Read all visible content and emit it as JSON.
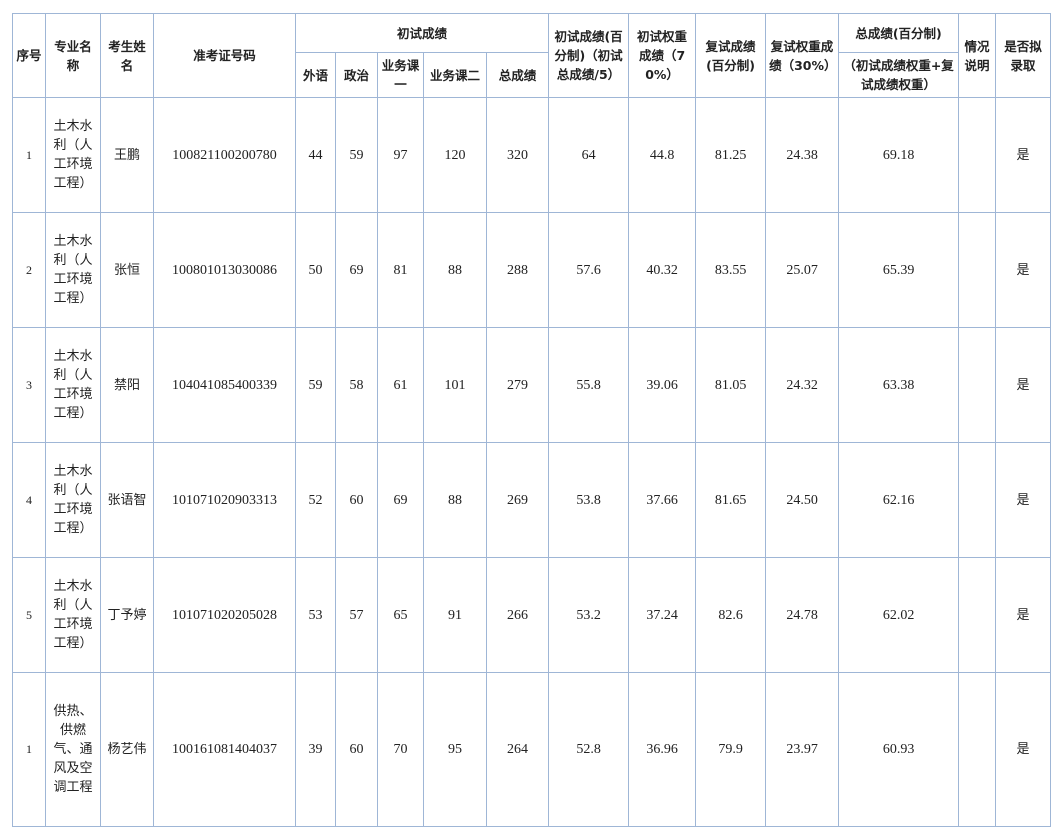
{
  "table": {
    "header": {
      "seq": "序号",
      "major": "专业名称",
      "name": "考生姓名",
      "exam_id": "准考证号码",
      "prelim": "初试成绩",
      "foreign": "外语",
      "politics": "政治",
      "course1": "业务课一",
      "course2": "业务课二",
      "prelim_total": "总成绩",
      "prelim_pct": "初试成绩(百分制)（初试总成绩/5）",
      "prelim_weighted": "初试权重成绩（70%）",
      "retest_pct": "复试成绩(百分制)",
      "retest_weighted": "复试权重成绩（30%）",
      "final": "总成绩(百分制)",
      "final_note": "（初试成绩权重+复试成绩权重）",
      "remark": "情况说明",
      "admit": "是否拟录取"
    },
    "rows": [
      [
        "1",
        "土木水利（人工环境工程）",
        "王鹏",
        "100821100200780",
        "44",
        "59",
        "97",
        "120",
        "320",
        "64",
        "44.8",
        "81.25",
        "24.38",
        "69.18",
        "是"
      ],
      [
        "2",
        "土木水利（人工环境工程）",
        "张恒",
        "100801013030086",
        "50",
        "69",
        "81",
        "88",
        "288",
        "57.6",
        "40.32",
        "83.55",
        "25.07",
        "65.39",
        "是"
      ],
      [
        "3",
        "土木水利（人工环境工程）",
        "禁阳",
        "104041085400339",
        "59",
        "58",
        "61",
        "101",
        "279",
        "55.8",
        "39.06",
        "81.05",
        "24.32",
        "63.38",
        "是"
      ],
      [
        "4",
        "土木水利（人工环境工程）",
        "张语智",
        "101071020903313",
        "52",
        "60",
        "69",
        "88",
        "269",
        "53.8",
        "37.66",
        "81.65",
        "24.50",
        "62.16",
        "是"
      ],
      [
        "5",
        "土木水利（人工环境工程）",
        "丁予婷",
        "101071020205028",
        "53",
        "57",
        "65",
        "91",
        "266",
        "53.2",
        "37.24",
        "82.6",
        "24.78",
        "62.02",
        "是"
      ],
      [
        "1",
        "供热、供燃气、通风及空调工程",
        "杨艺伟",
        "100161081404037",
        "39",
        "60",
        "70",
        "95",
        "264",
        "52.8",
        "36.96",
        "79.9",
        "23.97",
        "60.93",
        "是"
      ]
    ]
  }
}
